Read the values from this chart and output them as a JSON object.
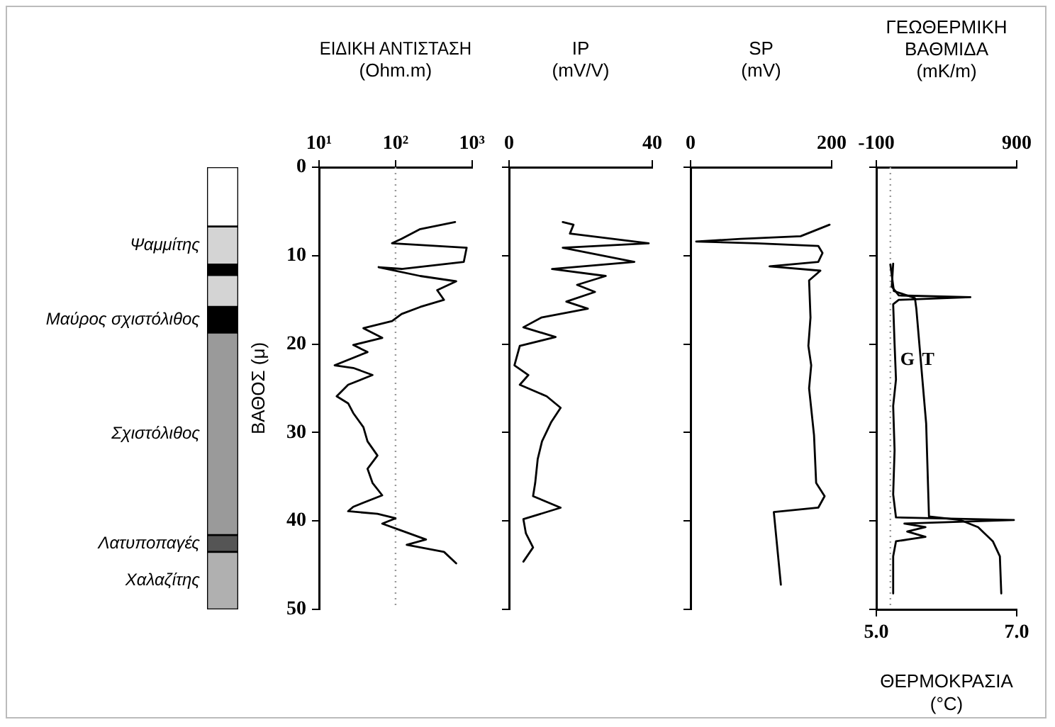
{
  "chart_data": [
    {
      "type": "bar",
      "stacked": true,
      "categories": [
        null
      ],
      "ylim": [
        50,
        0
      ],
      "tick_labels": false,
      "series": [
        {
          "color": "#ffffff",
          "values": [
            6.7
          ]
        },
        {
          "name": "Ψαμμίτης",
          "color": "#d4d4d4",
          "values": [
            4.3
          ]
        },
        {
          "color": "#000000",
          "values": [
            1.2
          ]
        },
        {
          "color": "#d4d4d4",
          "values": [
            3.6
          ]
        },
        {
          "name": "Μαύρος σχιστόλιθος",
          "color": "#000000",
          "values": [
            2.9
          ]
        },
        {
          "name": "Σχιστόλιθος",
          "color": "#9a9a9a",
          "values": [
            22.9
          ]
        },
        {
          "name": "Λατυποπαγές",
          "color": "#555555",
          "values": [
            1.9
          ]
        },
        {
          "name": "Χαλαζίτης",
          "color": "#b0b0b0",
          "values": [
            6.5
          ]
        }
      ]
    },
    {
      "type": "line",
      "orientation": "horizontal",
      "log": "x",
      "xlabel": "ΕΙΔΙΚΗ ΑΝΤΙΣΤΑΣΗ\n(Ohm.m)",
      "ylabel": "ΒΑΘΟΣ (μ)",
      "xlim": [
        10,
        1000
      ],
      "xticks": [
        {
          "value": 10,
          "label": "10¹"
        },
        {
          "value": 100,
          "label": "10²"
        },
        {
          "value": 1000,
          "label": "10³"
        }
      ],
      "ylim": [
        50,
        0
      ],
      "yticks": [
        0,
        10,
        20,
        30,
        40,
        50
      ],
      "marker": "none",
      "series": [
        {
          "color": "#000000",
          "x": [
            6.2,
            7.0,
            8.1,
            8.6,
            9.1,
            10.7,
            11.5,
            11.3,
            12.3,
            12.9,
            13.9,
            15.0,
            15.8,
            16.6,
            17.4,
            18.2,
            19.3,
            20.1,
            20.9,
            22.4,
            22.7,
            23.5,
            24.6,
            25.9,
            26.7,
            27.8,
            29.4,
            31.0,
            32.6,
            34.1,
            35.7,
            37.1,
            38.4,
            38.9,
            39.2,
            39.7,
            40.3,
            41.1,
            42.1,
            42.7,
            43.5,
            44.8
          ],
          "values": [
            600,
            210,
            120,
            90,
            850,
            780,
            120,
            60,
            210,
            620,
            350,
            430,
            210,
            120,
            90,
            38,
            67,
            28,
            43,
            16,
            28,
            50,
            24,
            17,
            24,
            28,
            38,
            43,
            58,
            43,
            50,
            67,
            28,
            24,
            58,
            100,
            67,
            120,
            250,
            140,
            430,
            620
          ]
        }
      ],
      "ref_lines": [
        {
          "axis": "x",
          "value": 100,
          "color": "#999999",
          "line_style": "dotted"
        }
      ]
    },
    {
      "type": "line",
      "orientation": "horizontal",
      "xlabel": "IP\n(mV/V)",
      "xlim": [
        0,
        40
      ],
      "xticks": [
        0,
        40
      ],
      "ylim": [
        50,
        0
      ],
      "yticks": [
        0,
        10,
        20,
        30,
        40,
        50
      ],
      "tick_labels": "x",
      "marker": "none",
      "series": [
        {
          "color": "#000000",
          "x": [
            6.2,
            6.5,
            7.5,
            8.6,
            9.1,
            10.7,
            11.5,
            12.3,
            13.3,
            14.1,
            15.2,
            16.0,
            17.0,
            18.1,
            19.2,
            20.2,
            22.4,
            23.5,
            24.6,
            25.9,
            27.2,
            28.8,
            31.0,
            33.0,
            35.7,
            37.2,
            38.5,
            39.8,
            41.4,
            43.0,
            44.6
          ],
          "values": [
            15,
            18,
            17,
            39,
            15,
            35,
            12,
            27,
            19,
            24,
            16,
            22,
            9,
            4,
            13,
            3,
            1.5,
            5.4,
            3,
            10.5,
            14.4,
            11.8,
            9.2,
            8,
            7.3,
            6.7,
            14.4,
            4,
            4.7,
            6.7,
            4
          ]
        }
      ]
    },
    {
      "type": "line",
      "orientation": "horizontal",
      "xlabel": "SP\n(mV)",
      "xlim": [
        0,
        200
      ],
      "xticks": [
        0,
        200
      ],
      "ylim": [
        50,
        0
      ],
      "yticks": [
        0,
        10,
        20,
        30,
        40,
        50
      ],
      "tick_labels": "x",
      "marker": "none",
      "series": [
        {
          "color": "#000000",
          "x": [
            6.5,
            7.8,
            8.1,
            8.4,
            8.6,
            8.9,
            9.7,
            10.7,
            11.2,
            11.7,
            12.8,
            17.0,
            20.2,
            22.4,
            25.0,
            30.3,
            35.7,
            37.2,
            38.5,
            39.0,
            47.2
          ],
          "values": [
            197,
            156,
            71,
            8,
            93,
            181,
            187,
            181,
            112,
            184,
            168,
            170,
            167,
            171,
            168,
            175,
            178,
            190,
            181,
            118,
            128
          ]
        }
      ]
    },
    {
      "type": "line",
      "orientation": "horizontal",
      "x2label": "ΓΕΩΘΕΡΜΙΚΗ\nΒΑΘΜΙΔΑ\n(mK/m)",
      "xlabel": "ΘΕΡΜΟΚΡΑΣΙΑ\n(°C)",
      "x2lim": [
        -100,
        900
      ],
      "x2ticks": [
        -100,
        900
      ],
      "xlim": [
        5,
        7
      ],
      "xticks": [
        {
          "value": 5,
          "label": "5.0"
        },
        {
          "value": 7,
          "label": "7.0"
        }
      ],
      "ylim": [
        50,
        0
      ],
      "yticks": [
        0,
        10,
        20,
        30,
        40,
        50
      ],
      "tick_labels": "x",
      "marker": "none",
      "series": [
        {
          "name": "G",
          "axis": "x2",
          "color": "#000000",
          "x": [
            10.9,
            13.5,
            14.5,
            14.7,
            15.0,
            15.5,
            20,
            24,
            27,
            32,
            37,
            39.6,
            39.9,
            40.3,
            40.7,
            41.2,
            41.8,
            42.3,
            44,
            48.2
          ],
          "values": [
            20,
            10,
            60,
            570,
            60,
            20,
            30,
            40,
            20,
            30,
            20,
            40,
            880,
            100,
            250,
            120,
            250,
            40,
            20,
            20
          ]
        },
        {
          "name": "T",
          "color": "#000000",
          "x": [
            11,
            14,
            14.8,
            16,
            29,
            39.5,
            39.9,
            40.7,
            42.3,
            44,
            48.2
          ],
          "values": [
            5.2,
            5.25,
            5.55,
            5.57,
            5.71,
            5.75,
            6.2,
            6.45,
            6.66,
            6.76,
            6.78
          ]
        }
      ],
      "ref_lines": [
        {
          "axis": "x2",
          "value": 0,
          "color": "#999999",
          "line_style": "dotted"
        }
      ]
    }
  ]
}
